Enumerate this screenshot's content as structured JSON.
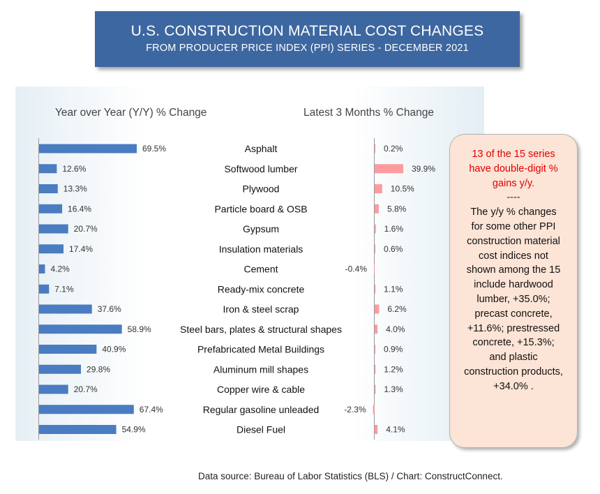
{
  "title": "U.S. CONSTRUCTION MATERIAL COST CHANGES",
  "subtitle": "FROM PRODUCER PRICE INDEX (PPI) SERIES - DECEMBER 2021",
  "chart_data": {
    "type": "bar",
    "orientation": "horizontal",
    "categories": [
      "Asphalt",
      "Softwood lumber",
      "Plywood",
      "Particle board & OSB",
      "Gypsum",
      "Insulation materials",
      "Cement",
      "Ready-mix concrete",
      "Iron & steel scrap",
      "Steel bars, plates & structural shapes",
      "Prefabricated Metal Buildings",
      "Aluminum mill shapes",
      "Copper wire & cable",
      "Regular gasoline unleaded",
      "Diesel Fuel"
    ],
    "series": [
      {
        "name": "Year over Year (Y/Y) % Change",
        "values": [
          69.5,
          12.6,
          13.3,
          16.4,
          20.7,
          17.4,
          4.2,
          7.1,
          37.6,
          58.9,
          40.9,
          29.8,
          20.7,
          67.4,
          54.9
        ],
        "labels": [
          "69.5%",
          "12.6%",
          "13.3%",
          "16.4%",
          "20.7%",
          "17.4%",
          "4.2%",
          "7.1%",
          "37.6%",
          "58.9%",
          "40.9%",
          "29.8%",
          "20.7%",
          "67.4%",
          "54.9%"
        ],
        "color": "#4a7cc2"
      },
      {
        "name": "Latest 3 Months % Change",
        "values": [
          0.2,
          39.9,
          10.5,
          5.8,
          1.6,
          0.6,
          -0.4,
          1.1,
          6.2,
          4.0,
          0.9,
          1.2,
          1.3,
          -2.3,
          4.1
        ],
        "labels": [
          "0.2%",
          "39.9%",
          "10.5%",
          "5.8%",
          "1.6%",
          "0.6%",
          "-0.4%",
          "1.1%",
          "6.2%",
          "4.0%",
          "0.9%",
          "1.2%",
          "1.3%",
          "-2.3%",
          "4.1%"
        ],
        "color": "#ff9a9e"
      }
    ]
  },
  "callout": {
    "highlight": "13 of the 15 series have double-digit % gains y/y.",
    "separator": "----",
    "body": "The y/y % changes for some other PPI construction material cost indices not shown among the 15 include hardwood lumber, +35.0%; precast concrete, +11.6%; prestressed concrete, +15.3%; and plastic construction products, +34.0% ."
  },
  "source": "Data source: Bureau of Labor Statistics (BLS) / Chart: ConstructConnect."
}
